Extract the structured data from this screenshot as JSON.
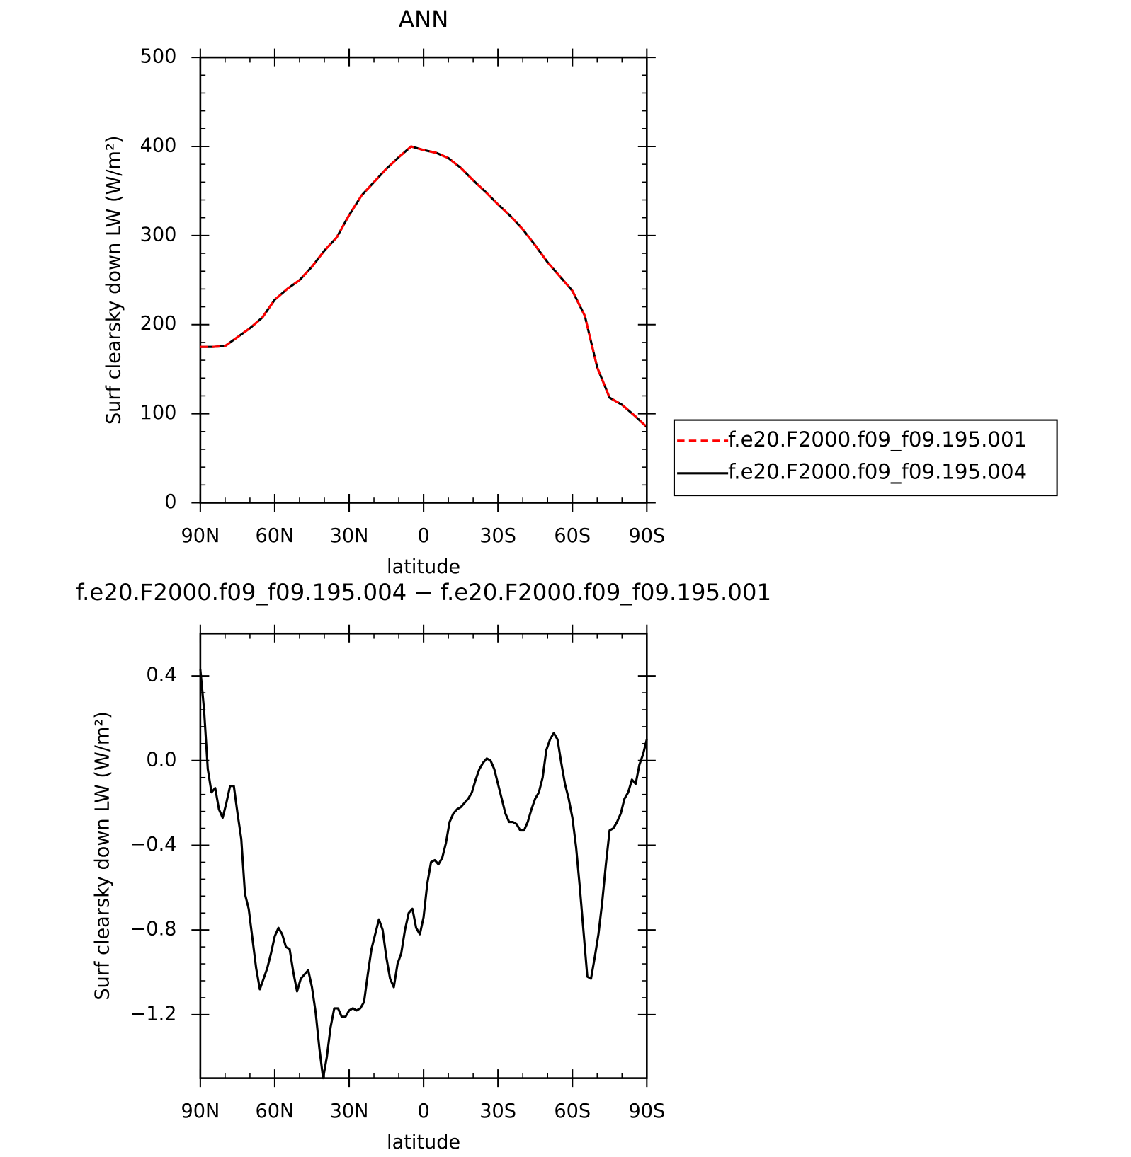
{
  "chart_data": [
    {
      "type": "line",
      "title": "ANN",
      "ylabel": "Surf clearsky down LW (W/m²)",
      "xlabel": "latitude",
      "x": [
        90,
        85,
        80,
        75,
        70,
        65,
        60,
        55,
        50,
        45,
        40,
        35,
        30,
        25,
        20,
        15,
        10,
        5,
        0,
        -5,
        -10,
        -15,
        -20,
        -25,
        -30,
        -35,
        -40,
        -45,
        -50,
        -55,
        -60,
        -65,
        -70,
        -75,
        -80,
        -85,
        -90
      ],
      "xlim": [
        90,
        -90
      ],
      "xticks": [
        {
          "value": 90,
          "label": "90N"
        },
        {
          "value": 60,
          "label": "60N"
        },
        {
          "value": 30,
          "label": "30N"
        },
        0,
        {
          "value": -30,
          "label": "30S"
        },
        {
          "value": -60,
          "label": "60S"
        },
        {
          "value": -90,
          "label": "90S"
        }
      ],
      "ylim": [
        0,
        500
      ],
      "yticks": [
        0,
        100,
        200,
        300,
        400,
        500
      ],
      "legend": "right",
      "series": [
        {
          "name": "f.e20.F2000.f09_f09.195.001",
          "color": "#ff0000",
          "linestyle": "dashed",
          "values": [
            175,
            175,
            176,
            186,
            196,
            208,
            228,
            240,
            250,
            265,
            283,
            298,
            323,
            345,
            360,
            375,
            388,
            400,
            396,
            393,
            387,
            376,
            362,
            349,
            335,
            322,
            307,
            289,
            270,
            254,
            238,
            210,
            152,
            118,
            110,
            98,
            85
          ]
        },
        {
          "name": "f.e20.F2000.f09_f09.195.004",
          "color": "#000000",
          "linestyle": "solid",
          "values": [
            175,
            175,
            176,
            186,
            196,
            208,
            228,
            240,
            250,
            265,
            283,
            298,
            323,
            345,
            360,
            375,
            388,
            400,
            396,
            393,
            387,
            376,
            362,
            349,
            335,
            322,
            307,
            289,
            270,
            254,
            238,
            210,
            152,
            118,
            110,
            98,
            85
          ]
        }
      ]
    },
    {
      "type": "line",
      "title": "f.e20.F2000.f09_f09.195.004 − f.e20.F2000.f09_f09.195.001",
      "ylabel": "Surf clearsky down LW (W/m²)",
      "xlabel": "latitude",
      "x": [
        90,
        88.5,
        87,
        85.5,
        84,
        82.5,
        81,
        79.5,
        78,
        76.5,
        75,
        73.5,
        72,
        70.5,
        69,
        67.5,
        66,
        64.5,
        63,
        61.5,
        60,
        58.5,
        57,
        55.5,
        54,
        52.5,
        51,
        49.5,
        48,
        46.5,
        45,
        43.5,
        42,
        40.5,
        39,
        37.5,
        36,
        34.5,
        33,
        31.5,
        30,
        28.5,
        27,
        25.5,
        24,
        22.5,
        21,
        19.5,
        18,
        16.5,
        15,
        13.5,
        12,
        10.5,
        9,
        7.5,
        6,
        4.5,
        3,
        1.5,
        0,
        -1.5,
        -3,
        -4.5,
        -6,
        -7.5,
        -9,
        -10.5,
        -12,
        -13.5,
        -15,
        -16.5,
        -18,
        -19.5,
        -21,
        -22.5,
        -24,
        -25.5,
        -27,
        -28.5,
        -30,
        -31.5,
        -33,
        -34.5,
        -36,
        -37.5,
        -39,
        -40.5,
        -42,
        -43.5,
        -45,
        -46.5,
        -48,
        -49.5,
        -51,
        -52.5,
        -54,
        -55.5,
        -57,
        -58.5,
        -60,
        -61.5,
        -63,
        -64.5,
        -66,
        -67.5,
        -69,
        -70.5,
        -72,
        -73.5,
        -75,
        -76.5,
        -78,
        -79.5,
        -81,
        -82.5,
        -84,
        -85.5,
        -87,
        -88.5,
        -90
      ],
      "values": [
        0.43,
        0.24,
        -0.04,
        -0.15,
        -0.13,
        -0.23,
        -0.27,
        -0.2,
        -0.12,
        -0.12,
        -0.25,
        -0.37,
        -0.63,
        -0.7,
        -0.84,
        -0.98,
        -1.08,
        -1.03,
        -0.98,
        -0.91,
        -0.83,
        -0.79,
        -0.82,
        -0.88,
        -0.89,
        -1.0,
        -1.09,
        -1.03,
        -1.01,
        -0.99,
        -1.07,
        -1.19,
        -1.36,
        -1.5,
        -1.4,
        -1.26,
        -1.17,
        -1.17,
        -1.21,
        -1.21,
        -1.18,
        -1.17,
        -1.18,
        -1.17,
        -1.14,
        -1.01,
        -0.89,
        -0.82,
        -0.75,
        -0.8,
        -0.93,
        -1.03,
        -1.07,
        -0.96,
        -0.91,
        -0.8,
        -0.72,
        -0.7,
        -0.79,
        -0.82,
        -0.74,
        -0.58,
        -0.48,
        -0.47,
        -0.49,
        -0.46,
        -0.39,
        -0.29,
        -0.25,
        -0.23,
        -0.22,
        -0.2,
        -0.18,
        -0.15,
        -0.09,
        -0.04,
        -0.01,
        0.01,
        0.0,
        -0.04,
        -0.11,
        -0.18,
        -0.25,
        -0.29,
        -0.29,
        -0.3,
        -0.33,
        -0.33,
        -0.29,
        -0.23,
        -0.18,
        -0.15,
        -0.08,
        0.05,
        0.1,
        0.13,
        0.1,
        -0.01,
        -0.11,
        -0.18,
        -0.27,
        -0.41,
        -0.6,
        -0.81,
        -1.02,
        -1.03,
        -0.93,
        -0.82,
        -0.67,
        -0.49,
        -0.33,
        -0.32,
        -0.29,
        -0.25,
        -0.18,
        -0.15,
        -0.09,
        -0.11,
        -0.02,
        0.03,
        0.1
      ],
      "color": "#000000",
      "xlim": [
        90,
        -90
      ],
      "xticks": [
        {
          "value": 90,
          "label": "90N"
        },
        {
          "value": 60,
          "label": "60N"
        },
        {
          "value": 30,
          "label": "30N"
        },
        0,
        {
          "value": -30,
          "label": "30S"
        },
        {
          "value": -60,
          "label": "60S"
        },
        {
          "value": -90,
          "label": "90S"
        }
      ],
      "ylim": [
        -1.5,
        0.6
      ],
      "yticks": [
        {
          "value": 0.4,
          "label": "0.4"
        },
        {
          "value": 0,
          "label": "0.0"
        },
        {
          "value": -0.4,
          "label": "−0.4"
        },
        {
          "value": -0.8,
          "label": "−0.8"
        },
        {
          "value": -1.2,
          "label": "−1.2"
        }
      ]
    }
  ]
}
